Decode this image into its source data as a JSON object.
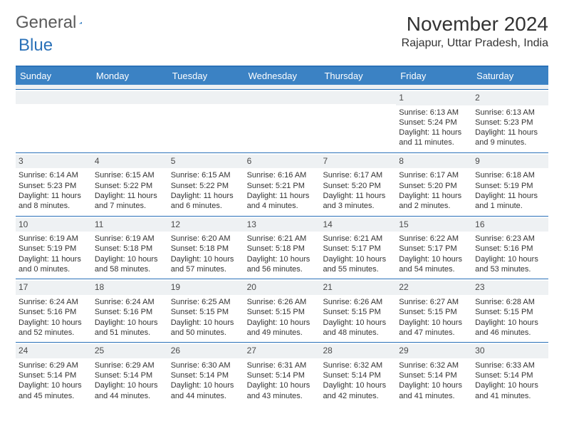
{
  "brand": {
    "part1": "General",
    "part2": "Blue"
  },
  "title": "November 2024",
  "location": "Rajapur, Uttar Pradesh, India",
  "colors": {
    "header_bg": "#3b82c4",
    "border": "#2a71b8",
    "daynum_bg": "#eef1f3",
    "text": "#333333",
    "logo_gray": "#5a5a5a"
  },
  "daynames": [
    "Sunday",
    "Monday",
    "Tuesday",
    "Wednesday",
    "Thursday",
    "Friday",
    "Saturday"
  ],
  "weeks": [
    [
      {
        "n": "",
        "sunrise": "",
        "sunset": "",
        "daylight": ""
      },
      {
        "n": "",
        "sunrise": "",
        "sunset": "",
        "daylight": ""
      },
      {
        "n": "",
        "sunrise": "",
        "sunset": "",
        "daylight": ""
      },
      {
        "n": "",
        "sunrise": "",
        "sunset": "",
        "daylight": ""
      },
      {
        "n": "",
        "sunrise": "",
        "sunset": "",
        "daylight": ""
      },
      {
        "n": "1",
        "sunrise": "Sunrise: 6:13 AM",
        "sunset": "Sunset: 5:24 PM",
        "daylight": "Daylight: 11 hours and 11 minutes."
      },
      {
        "n": "2",
        "sunrise": "Sunrise: 6:13 AM",
        "sunset": "Sunset: 5:23 PM",
        "daylight": "Daylight: 11 hours and 9 minutes."
      }
    ],
    [
      {
        "n": "3",
        "sunrise": "Sunrise: 6:14 AM",
        "sunset": "Sunset: 5:23 PM",
        "daylight": "Daylight: 11 hours and 8 minutes."
      },
      {
        "n": "4",
        "sunrise": "Sunrise: 6:15 AM",
        "sunset": "Sunset: 5:22 PM",
        "daylight": "Daylight: 11 hours and 7 minutes."
      },
      {
        "n": "5",
        "sunrise": "Sunrise: 6:15 AM",
        "sunset": "Sunset: 5:22 PM",
        "daylight": "Daylight: 11 hours and 6 minutes."
      },
      {
        "n": "6",
        "sunrise": "Sunrise: 6:16 AM",
        "sunset": "Sunset: 5:21 PM",
        "daylight": "Daylight: 11 hours and 4 minutes."
      },
      {
        "n": "7",
        "sunrise": "Sunrise: 6:17 AM",
        "sunset": "Sunset: 5:20 PM",
        "daylight": "Daylight: 11 hours and 3 minutes."
      },
      {
        "n": "8",
        "sunrise": "Sunrise: 6:17 AM",
        "sunset": "Sunset: 5:20 PM",
        "daylight": "Daylight: 11 hours and 2 minutes."
      },
      {
        "n": "9",
        "sunrise": "Sunrise: 6:18 AM",
        "sunset": "Sunset: 5:19 PM",
        "daylight": "Daylight: 11 hours and 1 minute."
      }
    ],
    [
      {
        "n": "10",
        "sunrise": "Sunrise: 6:19 AM",
        "sunset": "Sunset: 5:19 PM",
        "daylight": "Daylight: 11 hours and 0 minutes."
      },
      {
        "n": "11",
        "sunrise": "Sunrise: 6:19 AM",
        "sunset": "Sunset: 5:18 PM",
        "daylight": "Daylight: 10 hours and 58 minutes."
      },
      {
        "n": "12",
        "sunrise": "Sunrise: 6:20 AM",
        "sunset": "Sunset: 5:18 PM",
        "daylight": "Daylight: 10 hours and 57 minutes."
      },
      {
        "n": "13",
        "sunrise": "Sunrise: 6:21 AM",
        "sunset": "Sunset: 5:18 PM",
        "daylight": "Daylight: 10 hours and 56 minutes."
      },
      {
        "n": "14",
        "sunrise": "Sunrise: 6:21 AM",
        "sunset": "Sunset: 5:17 PM",
        "daylight": "Daylight: 10 hours and 55 minutes."
      },
      {
        "n": "15",
        "sunrise": "Sunrise: 6:22 AM",
        "sunset": "Sunset: 5:17 PM",
        "daylight": "Daylight: 10 hours and 54 minutes."
      },
      {
        "n": "16",
        "sunrise": "Sunrise: 6:23 AM",
        "sunset": "Sunset: 5:16 PM",
        "daylight": "Daylight: 10 hours and 53 minutes."
      }
    ],
    [
      {
        "n": "17",
        "sunrise": "Sunrise: 6:24 AM",
        "sunset": "Sunset: 5:16 PM",
        "daylight": "Daylight: 10 hours and 52 minutes."
      },
      {
        "n": "18",
        "sunrise": "Sunrise: 6:24 AM",
        "sunset": "Sunset: 5:16 PM",
        "daylight": "Daylight: 10 hours and 51 minutes."
      },
      {
        "n": "19",
        "sunrise": "Sunrise: 6:25 AM",
        "sunset": "Sunset: 5:15 PM",
        "daylight": "Daylight: 10 hours and 50 minutes."
      },
      {
        "n": "20",
        "sunrise": "Sunrise: 6:26 AM",
        "sunset": "Sunset: 5:15 PM",
        "daylight": "Daylight: 10 hours and 49 minutes."
      },
      {
        "n": "21",
        "sunrise": "Sunrise: 6:26 AM",
        "sunset": "Sunset: 5:15 PM",
        "daylight": "Daylight: 10 hours and 48 minutes."
      },
      {
        "n": "22",
        "sunrise": "Sunrise: 6:27 AM",
        "sunset": "Sunset: 5:15 PM",
        "daylight": "Daylight: 10 hours and 47 minutes."
      },
      {
        "n": "23",
        "sunrise": "Sunrise: 6:28 AM",
        "sunset": "Sunset: 5:15 PM",
        "daylight": "Daylight: 10 hours and 46 minutes."
      }
    ],
    [
      {
        "n": "24",
        "sunrise": "Sunrise: 6:29 AM",
        "sunset": "Sunset: 5:14 PM",
        "daylight": "Daylight: 10 hours and 45 minutes."
      },
      {
        "n": "25",
        "sunrise": "Sunrise: 6:29 AM",
        "sunset": "Sunset: 5:14 PM",
        "daylight": "Daylight: 10 hours and 44 minutes."
      },
      {
        "n": "26",
        "sunrise": "Sunrise: 6:30 AM",
        "sunset": "Sunset: 5:14 PM",
        "daylight": "Daylight: 10 hours and 44 minutes."
      },
      {
        "n": "27",
        "sunrise": "Sunrise: 6:31 AM",
        "sunset": "Sunset: 5:14 PM",
        "daylight": "Daylight: 10 hours and 43 minutes."
      },
      {
        "n": "28",
        "sunrise": "Sunrise: 6:32 AM",
        "sunset": "Sunset: 5:14 PM",
        "daylight": "Daylight: 10 hours and 42 minutes."
      },
      {
        "n": "29",
        "sunrise": "Sunrise: 6:32 AM",
        "sunset": "Sunset: 5:14 PM",
        "daylight": "Daylight: 10 hours and 41 minutes."
      },
      {
        "n": "30",
        "sunrise": "Sunrise: 6:33 AM",
        "sunset": "Sunset: 5:14 PM",
        "daylight": "Daylight: 10 hours and 41 minutes."
      }
    ]
  ]
}
